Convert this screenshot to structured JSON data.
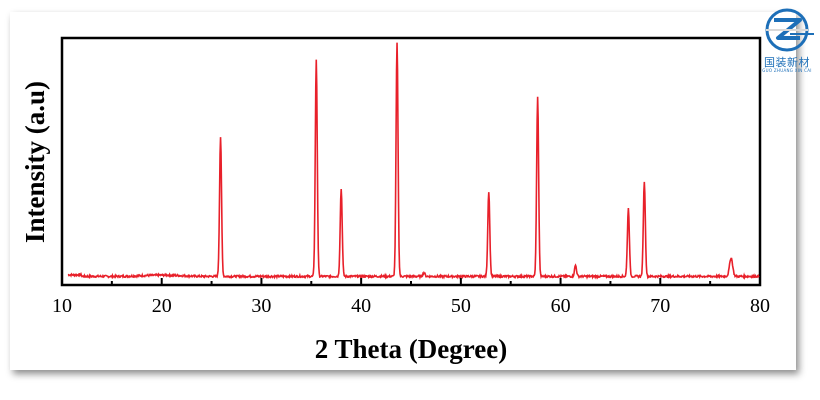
{
  "logo": {
    "name_cn": "国装新材",
    "name_en": "GUO ZHUANG XIN CAI"
  },
  "colors": {
    "series": "#e8202a",
    "axis": "#000000",
    "logo": "#1d6fb8"
  },
  "chart_data": {
    "type": "line",
    "title": "",
    "xlabel": "2 Theta (Degree)",
    "ylabel": "Intensity (a.u)",
    "xlim": [
      10,
      80
    ],
    "ylim": [
      0,
      100
    ],
    "x_ticks": [
      10,
      20,
      30,
      40,
      50,
      60,
      70,
      80
    ],
    "y_ticks_labeled": false,
    "grid": false,
    "legend": "none",
    "baseline": 3.5,
    "series": [
      {
        "peaks": [
          {
            "x": 25.9,
            "y": 60
          },
          {
            "x": 35.5,
            "y": 91
          },
          {
            "x": 38.0,
            "y": 39
          },
          {
            "x": 43.6,
            "y": 98
          },
          {
            "x": 46.3,
            "y": 5
          },
          {
            "x": 52.8,
            "y": 38
          },
          {
            "x": 57.7,
            "y": 76
          },
          {
            "x": 61.5,
            "y": 8
          },
          {
            "x": 66.8,
            "y": 31
          },
          {
            "x": 68.4,
            "y": 42
          },
          {
            "x": 77.1,
            "y": 11
          }
        ]
      }
    ]
  }
}
